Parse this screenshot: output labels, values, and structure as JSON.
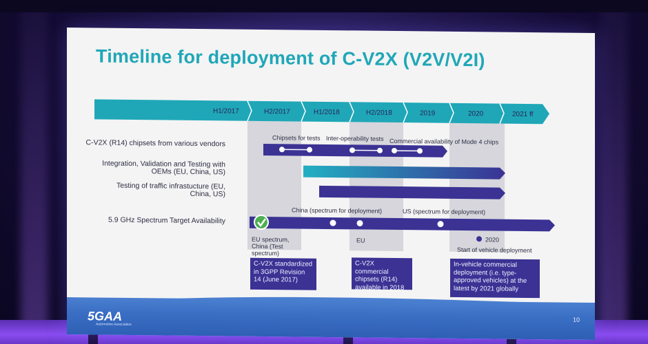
{
  "slide": {
    "title": "Timeline for deployment of C-V2X (V2V/V2I)",
    "periods": [
      "H1/2017",
      "H2/2017",
      "H1/2018",
      "H2/2018",
      "2019",
      "2020",
      "2021 ff"
    ],
    "rows": [
      {
        "label": "C-V2X (R14) chipsets from various vendors"
      },
      {
        "label": "Integration, Validation and Testing with OEMs (EU, China, US)"
      },
      {
        "label": "Testing of traffic infrastucture (EU, China, US)"
      },
      {
        "label": "5.9 GHz Spectrum Target Availability"
      }
    ],
    "milestones_top": [
      "Chipsets for tests",
      "Inter-operability tests",
      "Commercial availability of Mode 4 chips"
    ],
    "spectrum_notes": {
      "china": "China (spectrum for deployment)",
      "us": "US (spectrum for deployment)",
      "eu_china_test": "EU spectrum, China (Test spectrum)",
      "eu": "EU",
      "year_2020": "2020",
      "vehicle_deployment": "Start of vehicle deployment"
    },
    "callouts": [
      "C-V2X standardized in 3GPP Revision 14 (June 2017)",
      "C-V2X commercial chipsets (R14) available in 2018",
      "In-vehicle commercial deployment (i.e. type-approved vehicles) at the latest by 2021 globally"
    ],
    "footer": {
      "logo": "5GAA",
      "logo_sub": "Automotive Association",
      "page_number": "10"
    },
    "colors": {
      "teal": "#1fa7b8",
      "purple": "#3b3294",
      "footer_blue": "#3a6fc4"
    }
  }
}
